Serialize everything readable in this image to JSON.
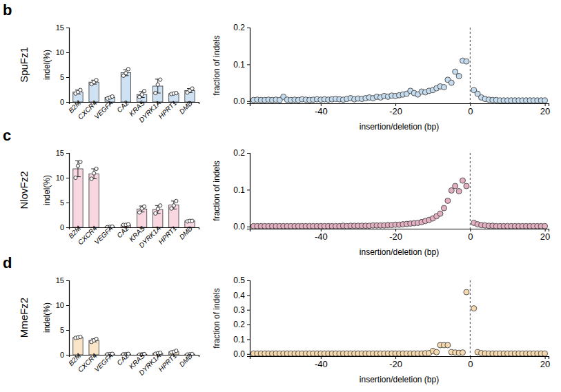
{
  "chart_data": [
    {
      "type": "bar",
      "title": "SpuFz1",
      "annotations": [
        "b"
      ],
      "ylabel": "indel(%)",
      "color": "#cfe2f3",
      "categories": [
        "B2M",
        "CXCR4",
        "VEGFA",
        "CA2",
        "KRAS",
        "DYRK1A",
        "HPRT1",
        "DMD"
      ],
      "values": [
        2.0,
        4.0,
        0.9,
        5.9,
        1.5,
        3.2,
        1.7,
        2.3
      ],
      "errors": [
        0.4,
        0.4,
        0.2,
        0.6,
        0.6,
        1.4,
        0.1,
        0.4
      ],
      "points": [
        [
          1.7,
          2.0,
          2.4
        ],
        [
          3.6,
          4.0,
          4.4
        ],
        [
          0.7,
          0.9,
          1.1
        ],
        [
          5.3,
          5.8,
          6.6
        ],
        [
          1.0,
          1.5,
          2.2
        ],
        [
          1.8,
          3.5,
          4.5
        ],
        [
          1.6,
          1.7,
          1.8
        ],
        [
          1.9,
          2.3,
          2.7
        ]
      ],
      "ylim": [
        0,
        15
      ],
      "yticks": [
        0,
        5,
        10,
        15
      ]
    },
    {
      "type": "scatter",
      "ylabel": "fraction of indels",
      "xlabel": "insertion/deletion (bp)",
      "color": "#c5dbee",
      "reference_line": 0,
      "x": [
        -58,
        -57,
        -56,
        -55,
        -54,
        -53,
        -52,
        -51,
        -50,
        -49,
        -48,
        -47,
        -46,
        -45,
        -44,
        -43,
        -42,
        -41,
        -40,
        -39,
        -38,
        -37,
        -36,
        -35,
        -34,
        -33,
        -32,
        -31,
        -30,
        -29,
        -28,
        -27,
        -26,
        -25,
        -24,
        -23,
        -22,
        -21,
        -20,
        -19,
        -18,
        -17,
        -16,
        -15,
        -14,
        -13,
        -12,
        -11,
        -10,
        -9,
        -8,
        -7,
        -6,
        -5,
        -4,
        -3,
        -2,
        -1,
        1,
        2,
        3,
        4,
        5,
        6,
        7,
        8,
        9,
        10,
        11,
        12,
        13,
        14,
        15,
        16,
        17,
        18,
        19,
        20
      ],
      "values": [
        0.003,
        0.004,
        0.003,
        0.003,
        0.004,
        0.003,
        0.004,
        0.003,
        0.012,
        0.004,
        0.003,
        0.004,
        0.003,
        0.005,
        0.004,
        0.003,
        0.004,
        0.005,
        0.004,
        0.005,
        0.004,
        0.005,
        0.006,
        0.005,
        0.004,
        0.006,
        0.008,
        0.005,
        0.007,
        0.006,
        0.008,
        0.01,
        0.008,
        0.012,
        0.01,
        0.014,
        0.012,
        0.015,
        0.014,
        0.016,
        0.018,
        0.02,
        0.028,
        0.022,
        0.018,
        0.026,
        0.024,
        0.028,
        0.03,
        0.035,
        0.04,
        0.038,
        0.058,
        0.05,
        0.08,
        0.068,
        0.11,
        0.108,
        0.03,
        0.02,
        0.01,
        0.006,
        0.004,
        0.003,
        0.003,
        0.002,
        0.002,
        0.002,
        0.002,
        0.002,
        0.002,
        0.002,
        0.002,
        0.002,
        0.002,
        0.002,
        0.002,
        0.002
      ],
      "xlim": [
        -59,
        21
      ],
      "xticks": [
        -40,
        -20,
        0,
        20
      ],
      "ylim": [
        -0.006,
        0.2
      ],
      "yticks": [
        {
          "value": 0,
          "label": "0.0"
        },
        {
          "value": 0.1,
          "label": "0.1"
        },
        {
          "value": 0.2,
          "label": "0.2"
        }
      ]
    },
    {
      "type": "bar",
      "title": "NlovFz2",
      "annotations": [
        "c"
      ],
      "ylabel": "indel(%)",
      "color": "#f8d7e0",
      "categories": [
        "B2M",
        "CXCR4",
        "VEGFA",
        "CA2",
        "KRAS",
        "DYRK1A",
        "HPRT1",
        "DMD"
      ],
      "values": [
        11.8,
        10.8,
        0.1,
        0.5,
        3.7,
        3.6,
        4.5,
        1.3
      ],
      "errors": [
        1.6,
        1.0,
        0.05,
        0.05,
        0.6,
        0.8,
        0.8,
        0.1
      ],
      "points": [
        [
          10.0,
          12.4,
          13.2
        ],
        [
          9.8,
          10.9,
          11.8
        ],
        [
          0.05,
          0.1,
          0.15
        ],
        [
          0.5,
          0.5,
          0.6
        ],
        [
          3.0,
          3.8,
          4.2
        ],
        [
          2.8,
          3.7,
          4.4
        ],
        [
          3.8,
          4.4,
          5.3
        ],
        [
          1.2,
          1.3,
          1.3
        ]
      ],
      "ylim": [
        0,
        15
      ],
      "yticks": [
        0,
        5,
        10,
        15
      ]
    },
    {
      "type": "scatter",
      "ylabel": "fraction of indels",
      "xlabel": "insertion/deletion (bp)",
      "color": "#e4afc2",
      "reference_line": 0,
      "x": [
        -58,
        -57,
        -56,
        -55,
        -54,
        -53,
        -52,
        -51,
        -50,
        -49,
        -48,
        -47,
        -46,
        -45,
        -44,
        -43,
        -42,
        -41,
        -40,
        -39,
        -38,
        -37,
        -36,
        -35,
        -34,
        -33,
        -32,
        -31,
        -30,
        -29,
        -28,
        -27,
        -26,
        -25,
        -24,
        -23,
        -22,
        -21,
        -20,
        -19,
        -18,
        -17,
        -16,
        -15,
        -14,
        -13,
        -12,
        -11,
        -10,
        -9,
        -8,
        -7,
        -6,
        -5,
        -4,
        -3,
        -2,
        -1,
        1,
        2,
        3,
        4,
        5,
        6,
        7,
        8,
        9,
        10,
        11,
        12,
        13,
        14,
        15,
        16,
        17,
        18,
        19,
        20
      ],
      "values": [
        0.001,
        0.001,
        0.001,
        0.001,
        0.001,
        0.001,
        0.001,
        0.001,
        0.001,
        0.001,
        0.001,
        0.001,
        0.001,
        0.001,
        0.001,
        0.001,
        0.001,
        0.001,
        0.001,
        0.001,
        0.001,
        0.001,
        0.001,
        0.001,
        0.002,
        0.001,
        0.002,
        0.002,
        0.002,
        0.002,
        0.002,
        0.002,
        0.003,
        0.003,
        0.003,
        0.003,
        0.004,
        0.004,
        0.005,
        0.005,
        0.006,
        0.007,
        0.008,
        0.009,
        0.01,
        0.012,
        0.015,
        0.018,
        0.022,
        0.028,
        0.035,
        0.05,
        0.07,
        0.098,
        0.11,
        0.096,
        0.125,
        0.11,
        0.01,
        0.006,
        0.004,
        0.003,
        0.002,
        0.002,
        0.001,
        0.001,
        0.001,
        0.001,
        0.001,
        0.001,
        0.001,
        0.001,
        0.001,
        0.001,
        0.001,
        0.001,
        0.001,
        0.001
      ],
      "xlim": [
        -59,
        21
      ],
      "xticks": [
        -40,
        -20,
        0,
        20
      ],
      "ylim": [
        -0.006,
        0.2
      ],
      "yticks": [
        {
          "value": 0,
          "label": "0.0"
        },
        {
          "value": 0.1,
          "label": "0.1"
        },
        {
          "value": 0.2,
          "label": "0.2"
        }
      ]
    },
    {
      "type": "bar",
      "title": "MmeFz2",
      "annotations": [
        "d"
      ],
      "ylabel": "indel(%)",
      "color": "#fbe5c8",
      "categories": [
        "B2M",
        "CXCR4",
        "VEGFA",
        "CA2",
        "KRAS",
        "DYRK1A",
        "HPRT1",
        "DMD"
      ],
      "values": [
        3.5,
        2.9,
        0.15,
        0.15,
        0.1,
        0.3,
        0.6,
        0.1
      ],
      "errors": [
        0.1,
        0.3,
        0.05,
        0.05,
        0.05,
        0.1,
        0.15,
        0.05
      ],
      "points": [
        [
          3.4,
          3.5,
          3.6
        ],
        [
          2.6,
          2.9,
          3.2
        ],
        [
          0.1,
          0.15,
          0.2
        ],
        [
          0.1,
          0.15,
          0.2
        ],
        [
          0.05,
          0.1,
          0.15
        ],
        [
          0.2,
          0.3,
          0.4
        ],
        [
          0.5,
          0.6,
          0.8
        ],
        [
          0.05,
          0.1,
          0.15
        ]
      ],
      "ylim": [
        0,
        15
      ],
      "yticks": [
        0,
        5,
        10,
        15
      ]
    },
    {
      "type": "scatter",
      "ylabel": "fraction of indels",
      "xlabel": "insertion/deletion (bp)",
      "color": "#f6d9ae",
      "reference_line": 0,
      "x": [
        -58,
        -57,
        -56,
        -55,
        -54,
        -53,
        -52,
        -51,
        -50,
        -49,
        -48,
        -47,
        -46,
        -45,
        -44,
        -43,
        -42,
        -41,
        -40,
        -39,
        -38,
        -37,
        -36,
        -35,
        -34,
        -33,
        -32,
        -31,
        -30,
        -29,
        -28,
        -27,
        -26,
        -25,
        -24,
        -23,
        -22,
        -21,
        -20,
        -19,
        -18,
        -17,
        -16,
        -15,
        -14,
        -13,
        -12,
        -11,
        -10,
        -9,
        -8,
        -7,
        -6,
        -5,
        -4,
        -3,
        -2,
        -1,
        1,
        2,
        3,
        4,
        5,
        6,
        7,
        8,
        9,
        10,
        11,
        12,
        13,
        14,
        15,
        16,
        17,
        18,
        19,
        20
      ],
      "values": [
        0.003,
        0.003,
        0.003,
        0.003,
        0.003,
        0.003,
        0.003,
        0.003,
        0.003,
        0.003,
        0.003,
        0.003,
        0.003,
        0.003,
        0.003,
        0.003,
        0.003,
        0.003,
        0.003,
        0.003,
        0.003,
        0.003,
        0.003,
        0.003,
        0.003,
        0.003,
        0.003,
        0.003,
        0.003,
        0.003,
        0.003,
        0.003,
        0.003,
        0.003,
        0.003,
        0.003,
        0.003,
        0.003,
        0.003,
        0.003,
        0.003,
        0.003,
        0.003,
        0.003,
        0.003,
        0.003,
        0.005,
        0.006,
        0.02,
        0.012,
        0.06,
        0.06,
        0.06,
        0.012,
        0.01,
        0.008,
        0.01,
        0.42,
        0.31,
        0.012,
        0.006,
        0.004,
        0.003,
        0.003,
        0.003,
        0.003,
        0.003,
        0.003,
        0.003,
        0.003,
        0.003,
        0.003,
        0.003,
        0.003,
        0.003,
        0.003,
        0.003,
        0.003
      ],
      "xlim": [
        -59,
        21
      ],
      "xticks": [
        -40,
        -20,
        0,
        20
      ],
      "ylim": [
        -0.015,
        0.5
      ],
      "yticks": [
        {
          "value": 0,
          "label": "0.0"
        },
        {
          "value": 0.1,
          "label": "0.1"
        },
        {
          "value": 0.2,
          "label": "0.2"
        },
        {
          "value": 0.3,
          "label": "0.3"
        },
        {
          "value": 0.4,
          "label": "0.4"
        },
        {
          "value": 0.5,
          "label": "0.5"
        }
      ]
    }
  ]
}
